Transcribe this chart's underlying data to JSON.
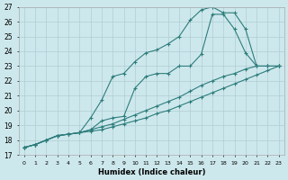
{
  "xlabel": "Humidex (Indice chaleur)",
  "xlim": [
    -0.5,
    23.5
  ],
  "ylim": [
    17,
    27
  ],
  "yticks": [
    17,
    18,
    19,
    20,
    21,
    22,
    23,
    24,
    25,
    26,
    27
  ],
  "xticks": [
    0,
    1,
    2,
    3,
    4,
    5,
    6,
    7,
    8,
    9,
    10,
    11,
    12,
    13,
    14,
    15,
    16,
    17,
    18,
    19,
    20,
    21,
    22,
    23
  ],
  "background_color": "#cde8ec",
  "grid_color": "#b0cdd5",
  "line_color": "#2e7d7d",
  "lines": [
    {
      "x": [
        0,
        1,
        2,
        3,
        4,
        5,
        6,
        7,
        8,
        9,
        10,
        11,
        12,
        13,
        14,
        15,
        16,
        17,
        18,
        19,
        20,
        21,
        22,
        23
      ],
      "y": [
        17.5,
        17.7,
        18.0,
        18.3,
        18.4,
        18.5,
        19.5,
        20.7,
        22.3,
        22.5,
        23.3,
        23.9,
        24.1,
        24.5,
        25.0,
        26.1,
        26.8,
        27.0,
        26.6,
        26.6,
        25.5,
        23.0,
        23.0,
        23.0
      ]
    },
    {
      "x": [
        0,
        1,
        2,
        3,
        4,
        5,
        6,
        7,
        8,
        9,
        10,
        11,
        12,
        13,
        14,
        15,
        16,
        17,
        18,
        19,
        20,
        21,
        22,
        23
      ],
      "y": [
        17.5,
        17.7,
        18.0,
        18.3,
        18.4,
        18.5,
        18.7,
        19.3,
        19.5,
        19.6,
        21.5,
        22.3,
        22.5,
        22.5,
        23.0,
        23.0,
        23.8,
        26.5,
        26.5,
        25.5,
        23.9,
        23.0,
        23.0,
        23.0
      ]
    },
    {
      "x": [
        0,
        1,
        2,
        3,
        4,
        5,
        6,
        7,
        8,
        9,
        10,
        11,
        12,
        13,
        14,
        15,
        16,
        17,
        18,
        19,
        20,
        21,
        22,
        23
      ],
      "y": [
        17.5,
        17.7,
        18.0,
        18.3,
        18.4,
        18.5,
        18.7,
        18.9,
        19.1,
        19.4,
        19.7,
        20.0,
        20.3,
        20.6,
        20.9,
        21.3,
        21.7,
        22.0,
        22.3,
        22.5,
        22.8,
        23.0,
        23.0,
        23.0
      ]
    },
    {
      "x": [
        0,
        1,
        2,
        3,
        4,
        5,
        6,
        7,
        8,
        9,
        10,
        11,
        12,
        13,
        14,
        15,
        16,
        17,
        18,
        19,
        20,
        21,
        22,
        23
      ],
      "y": [
        17.5,
        17.7,
        18.0,
        18.3,
        18.4,
        18.5,
        18.6,
        18.7,
        18.9,
        19.1,
        19.3,
        19.5,
        19.8,
        20.0,
        20.3,
        20.6,
        20.9,
        21.2,
        21.5,
        21.8,
        22.1,
        22.4,
        22.7,
        23.0
      ]
    }
  ]
}
